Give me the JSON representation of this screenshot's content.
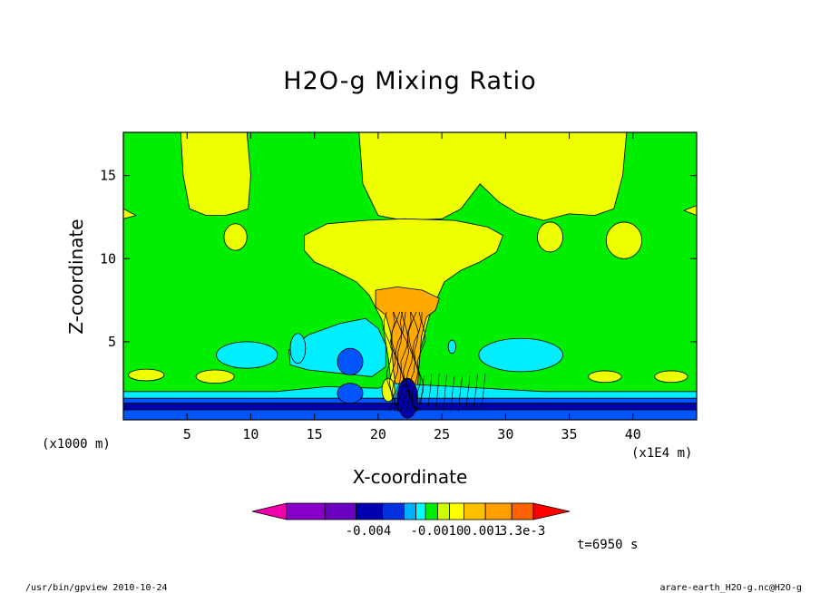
{
  "chart_data": {
    "type": "heatmap",
    "title": "H2O-g Mixing Ratio",
    "xlabel": "X-coordinate",
    "ylabel": "Z-coordinate",
    "x_unit_note": "(x1E4 m)",
    "y_unit_note": "(x1000 m)",
    "xlim": [
      0,
      45
    ],
    "ylim": [
      0.3,
      17.6
    ],
    "x_ticks": [
      5,
      10,
      15,
      20,
      25,
      30,
      35,
      40
    ],
    "y_ticks": [
      5,
      10,
      15
    ],
    "colorbar": {
      "colors": [
        "#ee00aa",
        "#8800cc",
        "#6a00c0",
        "#0000b0",
        "#0030e0",
        "#00b0ff",
        "#00ffff",
        "#00ee00",
        "#ccff00",
        "#ffff00",
        "#ffc000",
        "#ffa000",
        "#ff6000",
        "#ff0000"
      ],
      "labels": [
        "-0.004",
        "-0.0010",
        "0.001",
        "3.3e-3"
      ]
    },
    "time_label": "t=6950 s",
    "palette": {
      "background": "#00ee00",
      "positive_light": "#eeff00",
      "positive_strong": "#ffaa00",
      "negative_light": "#00eeff",
      "negative_mid": "#0055ff",
      "negative_strong": "#0000aa"
    }
  },
  "footer": {
    "left": "/usr/bin/gpview   2010-10-24",
    "right": "arare-earth_H2O-g.nc@H2O-g"
  }
}
